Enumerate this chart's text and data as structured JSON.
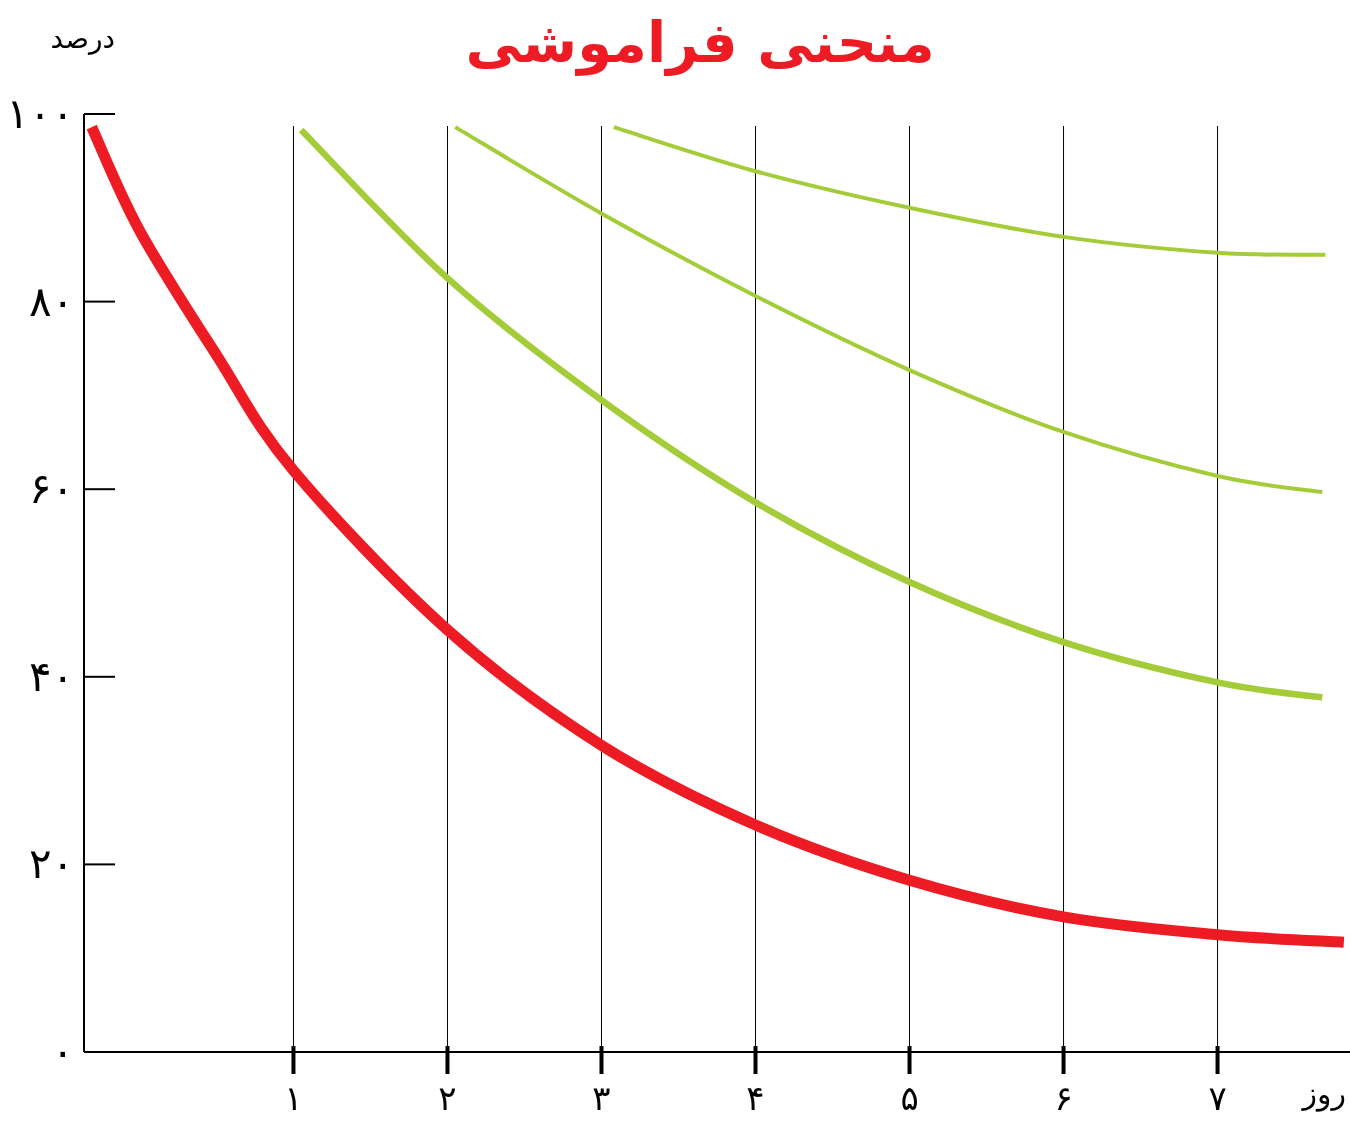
{
  "chart_data": {
    "type": "line",
    "title": "منحنی فراموشی",
    "xlabel": "روز",
    "ylabel": "درصد",
    "xlim": [
      -0.36,
      7.86
    ],
    "ylim": [
      0,
      100
    ],
    "xticks": [
      {
        "value": 1,
        "label": "۱"
      },
      {
        "value": 2,
        "label": "۲"
      },
      {
        "value": 3,
        "label": "۳"
      },
      {
        "value": 4,
        "label": "۴"
      },
      {
        "value": 5,
        "label": "۵"
      },
      {
        "value": 6,
        "label": "۶"
      },
      {
        "value": 7,
        "label": "۷"
      }
    ],
    "yticks": [
      {
        "value": 0,
        "label": "۰"
      },
      {
        "value": 20,
        "label": "۲۰"
      },
      {
        "value": 40,
        "label": "۴۰"
      },
      {
        "value": 60,
        "label": "۶۰"
      },
      {
        "value": 80,
        "label": "۸۰"
      },
      {
        "value": 100,
        "label": "۱۰۰"
      }
    ],
    "grid": "x",
    "marker": "none",
    "line_style": "solid",
    "series": [
      {
        "color": "#ed1c24",
        "x": [
          -0.31,
          0,
          0.5,
          1,
          2,
          3,
          4,
          5,
          6,
          7,
          7.82
        ],
        "values": [
          98.6,
          87.6,
          74.3,
          62,
          45,
          32.7,
          24.2,
          18.3,
          14.4,
          12.5,
          11.7
        ]
      },
      {
        "color": "#a4cc39",
        "x": [
          1.05,
          2,
          3,
          4,
          5,
          6,
          7,
          7.68
        ],
        "values": [
          98.3,
          82.5,
          69.5,
          58.6,
          50.1,
          43.7,
          39.4,
          37.8
        ]
      },
      {
        "color": "#a4cc39",
        "x": [
          2.05,
          3,
          4,
          5,
          6,
          7,
          7.68
        ],
        "values": [
          98.6,
          89.4,
          80.6,
          72.7,
          66.1,
          61.4,
          59.7
        ]
      },
      {
        "color": "#a4cc39",
        "x": [
          3.08,
          4,
          5,
          6,
          7,
          7.7
        ],
        "values": [
          98.6,
          93.9,
          90.0,
          86.9,
          85.2,
          85.0
        ]
      }
    ]
  }
}
